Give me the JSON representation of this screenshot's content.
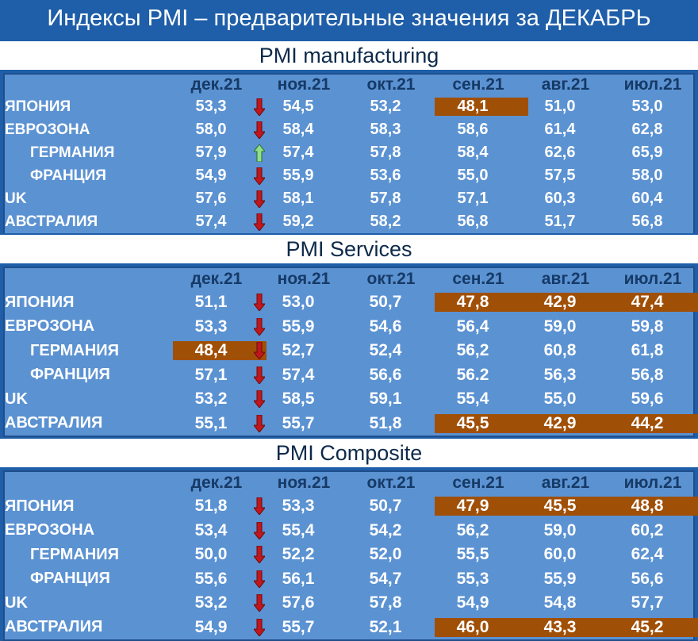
{
  "title": "Индексы PMI – предварительные значения за ДЕКАБРЬ",
  "months": [
    "дек.21",
    "ноя.21",
    "окт.21",
    "сен.21",
    "авг.21",
    "июл.21"
  ],
  "colors": {
    "background": "#1f5ea8",
    "panel": "#5b92d2",
    "highlight": "#a04f06",
    "arrow_down": "#c0161c",
    "arrow_up": "#8fe08a"
  },
  "sections": [
    {
      "header": "PMI manufacturing",
      "rows": [
        {
          "country": "ЯПОНИЯ",
          "sub": false,
          "trend": "down",
          "values": [
            "53,3",
            "54,5",
            "53,2",
            "48,1",
            "51,0",
            "53,0"
          ],
          "highlight": [
            false,
            false,
            false,
            true,
            false,
            false
          ]
        },
        {
          "country": "ЕВРОЗОНА",
          "sub": false,
          "trend": "down",
          "values": [
            "58,0",
            "58,4",
            "58,3",
            "58,6",
            "61,4",
            "62,8"
          ],
          "highlight": [
            false,
            false,
            false,
            false,
            false,
            false
          ]
        },
        {
          "country": "ГЕРМАНИЯ",
          "sub": true,
          "trend": "up",
          "values": [
            "57,9",
            "57,4",
            "57,8",
            "58,4",
            "62,6",
            "65,9"
          ],
          "highlight": [
            false,
            false,
            false,
            false,
            false,
            false
          ]
        },
        {
          "country": "ФРАНЦИЯ",
          "sub": true,
          "trend": "down",
          "values": [
            "54,9",
            "55,9",
            "53,6",
            "55,0",
            "57,5",
            "58,0"
          ],
          "highlight": [
            false,
            false,
            false,
            false,
            false,
            false
          ]
        },
        {
          "country": "UK",
          "sub": false,
          "trend": "down",
          "values": [
            "57,6",
            "58,1",
            "57,8",
            "57,1",
            "60,3",
            "60,4"
          ],
          "highlight": [
            false,
            false,
            false,
            false,
            false,
            false
          ]
        },
        {
          "country": "АВСТРАЛИЯ",
          "sub": false,
          "trend": "down",
          "values": [
            "57,4",
            "59,2",
            "58,2",
            "56,8",
            "51,7",
            "56,8"
          ],
          "highlight": [
            false,
            false,
            false,
            false,
            false,
            false
          ]
        }
      ]
    },
    {
      "header": "PMI Services",
      "rows": [
        {
          "country": "ЯПОНИЯ",
          "sub": false,
          "trend": "down",
          "values": [
            "51,1",
            "53,0",
            "50,7",
            "47,8",
            "42,9",
            "47,4"
          ],
          "highlight": [
            false,
            false,
            false,
            true,
            true,
            true
          ]
        },
        {
          "country": "ЕВРОЗОНА",
          "sub": false,
          "trend": "down",
          "values": [
            "53,3",
            "55,9",
            "54,6",
            "56,4",
            "59,0",
            "59,8"
          ],
          "highlight": [
            false,
            false,
            false,
            false,
            false,
            false
          ]
        },
        {
          "country": "ГЕРМАНИЯ",
          "sub": true,
          "trend": "down",
          "values": [
            "48,4",
            "52,7",
            "52,4",
            "56,2",
            "60,8",
            "61,8"
          ],
          "highlight": [
            true,
            false,
            false,
            false,
            false,
            false
          ]
        },
        {
          "country": "ФРАНЦИЯ",
          "sub": true,
          "trend": "down",
          "values": [
            "57,1",
            "57,4",
            "56,6",
            "56.2",
            "56,3",
            "56,8"
          ],
          "highlight": [
            false,
            false,
            false,
            false,
            false,
            false
          ]
        },
        {
          "country": "UK",
          "sub": false,
          "trend": "down",
          "values": [
            "53,2",
            "58,5",
            "59,1",
            "55,4",
            "55,0",
            "59,6"
          ],
          "highlight": [
            false,
            false,
            false,
            false,
            false,
            false
          ]
        },
        {
          "country": "АВСТРАЛИЯ",
          "sub": false,
          "trend": "down",
          "values": [
            "55,1",
            "55,7",
            "51,8",
            "45,5",
            "42,9",
            "44,2"
          ],
          "highlight": [
            false,
            false,
            false,
            true,
            true,
            true
          ]
        }
      ]
    },
    {
      "header": "PMI Composite",
      "rows": [
        {
          "country": "ЯПОНИЯ",
          "sub": false,
          "trend": "down",
          "values": [
            "51,8",
            "53,3",
            "50,7",
            "47,9",
            "45,5",
            "48,8"
          ],
          "highlight": [
            false,
            false,
            false,
            true,
            true,
            true
          ]
        },
        {
          "country": "ЕВРОЗОНА",
          "sub": false,
          "trend": "down",
          "values": [
            "53,4",
            "55,4",
            "54,2",
            "56,2",
            "59,0",
            "60,2"
          ],
          "highlight": [
            false,
            false,
            false,
            false,
            false,
            false
          ]
        },
        {
          "country": "ГЕРМАНИЯ",
          "sub": true,
          "trend": "down",
          "values": [
            "50,0",
            "52,2",
            "52,0",
            "55,5",
            "60,0",
            "62,4"
          ],
          "highlight": [
            false,
            false,
            false,
            false,
            false,
            false
          ]
        },
        {
          "country": "ФРАНЦИЯ",
          "sub": true,
          "trend": "down",
          "values": [
            "55,6",
            "56,1",
            "54,7",
            "55,3",
            "55,9",
            "56,6"
          ],
          "highlight": [
            false,
            false,
            false,
            false,
            false,
            false
          ]
        },
        {
          "country": "UK",
          "sub": false,
          "trend": "down",
          "values": [
            "53,2",
            "57,6",
            "57,8",
            "54,9",
            "54,8",
            "57,7"
          ],
          "highlight": [
            false,
            false,
            false,
            false,
            false,
            false
          ]
        },
        {
          "country": "АВСТРАЛИЯ",
          "sub": false,
          "trend": "down",
          "values": [
            "54,9",
            "55,7",
            "52,1",
            "46,0",
            "43,3",
            "45,2"
          ],
          "highlight": [
            false,
            false,
            false,
            true,
            true,
            true
          ]
        }
      ]
    }
  ]
}
